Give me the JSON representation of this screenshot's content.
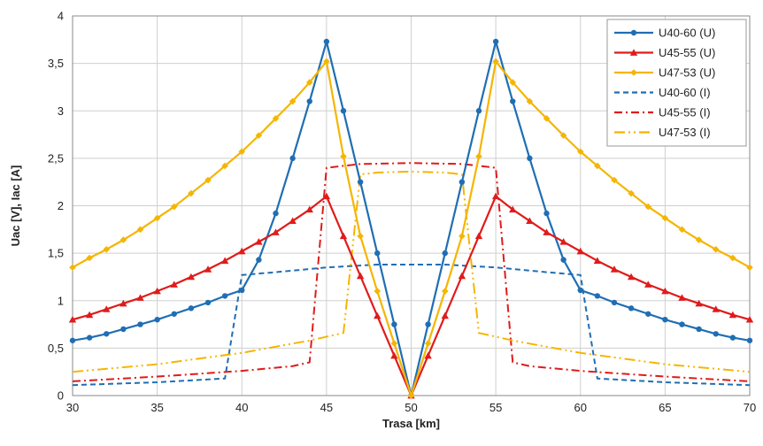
{
  "chart_data": {
    "type": "line",
    "xlabel": "Trasa [km]",
    "ylabel": "Uac [V], Iac [A]",
    "xlim": [
      30,
      70
    ],
    "ylim": [
      0,
      4
    ],
    "x_ticks": [
      30,
      35,
      40,
      45,
      50,
      55,
      60,
      65,
      70
    ],
    "x_tick_labels": [
      "30",
      "35",
      "40",
      "45",
      "50",
      "55",
      "60",
      "65",
      "70"
    ],
    "y_ticks": [
      0,
      0.5,
      1,
      1.5,
      2,
      2.5,
      3,
      3.5,
      4
    ],
    "y_tick_labels": [
      "0",
      "0,5",
      "1",
      "1,5",
      "2",
      "2,5",
      "3",
      "3,5",
      "4"
    ],
    "grid": true,
    "legend_position": "top-right",
    "series": [
      {
        "name": "U40-60 (U)",
        "color": "#1f6eb4",
        "dash": "solid",
        "marker": "circle",
        "x": [
          30,
          31,
          32,
          33,
          34,
          35,
          36,
          37,
          38,
          39,
          40,
          41,
          42,
          43,
          44,
          45,
          46,
          47,
          48,
          49,
          50,
          51,
          52,
          53,
          54,
          55,
          56,
          57,
          58,
          59,
          60,
          61,
          62,
          63,
          64,
          65,
          66,
          67,
          68,
          69,
          70
        ],
        "y": [
          0.58,
          0.61,
          0.65,
          0.7,
          0.75,
          0.8,
          0.86,
          0.92,
          0.98,
          1.05,
          1.11,
          1.43,
          1.92,
          2.5,
          3.1,
          3.73,
          3.0,
          2.25,
          1.5,
          0.75,
          0.0,
          0.75,
          1.5,
          2.25,
          3.0,
          3.73,
          3.1,
          2.5,
          1.92,
          1.43,
          1.11,
          1.05,
          0.98,
          0.92,
          0.86,
          0.8,
          0.75,
          0.7,
          0.65,
          0.61,
          0.58
        ]
      },
      {
        "name": "U45-55 (U)",
        "color": "#e01b1b",
        "dash": "solid",
        "marker": "triangle",
        "x": [
          30,
          31,
          32,
          33,
          34,
          35,
          36,
          37,
          38,
          39,
          40,
          41,
          42,
          43,
          44,
          45,
          46,
          47,
          48,
          49,
          50,
          51,
          52,
          53,
          54,
          55,
          56,
          57,
          58,
          59,
          60,
          61,
          62,
          63,
          64,
          65,
          66,
          67,
          68,
          69,
          70
        ],
        "y": [
          0.8,
          0.85,
          0.91,
          0.97,
          1.03,
          1.1,
          1.17,
          1.25,
          1.33,
          1.42,
          1.52,
          1.62,
          1.72,
          1.84,
          1.96,
          2.1,
          1.68,
          1.26,
          0.84,
          0.42,
          0.0,
          0.42,
          0.84,
          1.26,
          1.68,
          2.1,
          1.96,
          1.84,
          1.72,
          1.62,
          1.52,
          1.42,
          1.33,
          1.25,
          1.17,
          1.1,
          1.03,
          0.97,
          0.91,
          0.85,
          0.8
        ]
      },
      {
        "name": "U47-53 (U)",
        "color": "#f5b500",
        "dash": "solid",
        "marker": "diamond",
        "x": [
          30,
          31,
          32,
          33,
          34,
          35,
          36,
          37,
          38,
          39,
          40,
          41,
          42,
          43,
          44,
          45,
          46,
          47,
          48,
          49,
          50,
          51,
          52,
          53,
          54,
          55,
          56,
          57,
          58,
          59,
          60,
          61,
          62,
          63,
          64,
          65,
          66,
          67,
          68,
          69,
          70
        ],
        "y": [
          1.35,
          1.45,
          1.54,
          1.64,
          1.75,
          1.87,
          1.99,
          2.13,
          2.27,
          2.42,
          2.57,
          2.74,
          2.92,
          3.1,
          3.3,
          3.52,
          2.52,
          1.68,
          1.1,
          0.55,
          0.0,
          0.55,
          1.1,
          1.68,
          2.52,
          3.52,
          3.3,
          3.1,
          2.92,
          2.74,
          2.57,
          2.42,
          2.27,
          2.13,
          1.99,
          1.87,
          1.75,
          1.64,
          1.54,
          1.45,
          1.35
        ]
      },
      {
        "name": "U40-60 (I)",
        "color": "#1f6eb4",
        "dash": "dash",
        "marker": "none",
        "x": [
          30,
          35,
          38,
          39,
          40,
          42,
          45,
          48,
          50,
          52,
          55,
          58,
          60,
          61,
          62,
          65,
          70
        ],
        "y": [
          0.11,
          0.14,
          0.17,
          0.18,
          1.27,
          1.3,
          1.35,
          1.38,
          1.38,
          1.38,
          1.35,
          1.3,
          1.27,
          0.18,
          0.17,
          0.14,
          0.11
        ]
      },
      {
        "name": "U45-55 (I)",
        "color": "#e01b1b",
        "dash": "dashdot",
        "marker": "none",
        "x": [
          30,
          35,
          40,
          43,
          44,
          45,
          47,
          50,
          53,
          55,
          56,
          57,
          60,
          65,
          70
        ],
        "y": [
          0.15,
          0.2,
          0.26,
          0.31,
          0.35,
          2.4,
          2.44,
          2.45,
          2.44,
          2.4,
          0.35,
          0.31,
          0.26,
          0.2,
          0.15
        ],
        "x_breaks": [
          44.3,
          45.7
        ]
      },
      {
        "name": "U47-53 (I)",
        "color": "#f5b500",
        "dash": "dashdotdot",
        "marker": "none",
        "x": [
          30,
          35,
          40,
          44,
          46,
          47,
          48,
          50,
          52,
          53,
          54,
          56,
          60,
          65,
          70
        ],
        "y": [
          0.25,
          0.33,
          0.45,
          0.58,
          0.66,
          2.33,
          2.35,
          2.36,
          2.35,
          2.33,
          0.66,
          0.58,
          0.45,
          0.33,
          0.25
        ]
      }
    ]
  }
}
